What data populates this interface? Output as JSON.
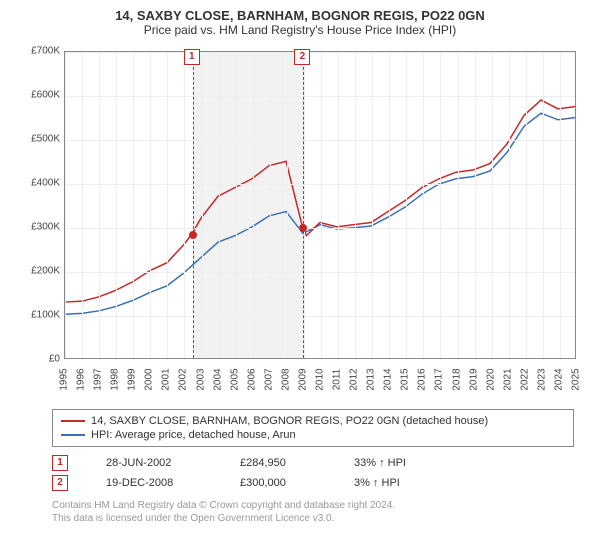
{
  "header": {
    "address": "14, SAXBY CLOSE, BARNHAM, BOGNOR REGIS, PO22 0GN",
    "subtitle": "Price paid vs. HM Land Registry's House Price Index (HPI)"
  },
  "chart": {
    "type": "line",
    "xlim": [
      1995,
      2025
    ],
    "ylim": [
      0,
      700000
    ],
    "ytick_step": 100000,
    "yticks": [
      "£0",
      "£100K",
      "£200K",
      "£300K",
      "£400K",
      "£500K",
      "£600K",
      "£700K"
    ],
    "xticks": [
      1995,
      1996,
      1997,
      1998,
      1999,
      2000,
      2001,
      2002,
      2003,
      2004,
      2005,
      2006,
      2007,
      2008,
      2009,
      2010,
      2011,
      2012,
      2013,
      2014,
      2015,
      2016,
      2017,
      2018,
      2019,
      2020,
      2021,
      2022,
      2023,
      2024,
      2025
    ],
    "background_color": "#ffffff",
    "grid_color": "#eeeeee",
    "band_color": "#f2f2f2",
    "band_range": [
      2002.5,
      2009.0
    ],
    "line_colors": {
      "property": "#c62828",
      "hpi": "#3b6fb6"
    },
    "line_width": 1.5,
    "markers": [
      {
        "n": "1",
        "x": 2002.49,
        "y": 284950
      },
      {
        "n": "2",
        "x": 2008.97,
        "y": 300000
      }
    ],
    "series_property": [
      [
        1995,
        128000
      ],
      [
        1996,
        130000
      ],
      [
        1997,
        140000
      ],
      [
        1998,
        155000
      ],
      [
        1999,
        175000
      ],
      [
        2000,
        200000
      ],
      [
        2001,
        218000
      ],
      [
        2002,
        260000
      ],
      [
        2002.49,
        284950
      ],
      [
        2003,
        320000
      ],
      [
        2004,
        370000
      ],
      [
        2005,
        390000
      ],
      [
        2006,
        410000
      ],
      [
        2007,
        440000
      ],
      [
        2008,
        450000
      ],
      [
        2008.97,
        300000
      ],
      [
        2009.2,
        280000
      ],
      [
        2010,
        310000
      ],
      [
        2011,
        300000
      ],
      [
        2012,
        305000
      ],
      [
        2013,
        310000
      ],
      [
        2014,
        335000
      ],
      [
        2015,
        360000
      ],
      [
        2016,
        390000
      ],
      [
        2017,
        410000
      ],
      [
        2018,
        425000
      ],
      [
        2019,
        430000
      ],
      [
        2020,
        445000
      ],
      [
        2021,
        490000
      ],
      [
        2022,
        555000
      ],
      [
        2023,
        590000
      ],
      [
        2024,
        570000
      ],
      [
        2025,
        575000
      ]
    ],
    "series_hpi": [
      [
        1995,
        100000
      ],
      [
        1996,
        102000
      ],
      [
        1997,
        108000
      ],
      [
        1998,
        118000
      ],
      [
        1999,
        132000
      ],
      [
        2000,
        150000
      ],
      [
        2001,
        165000
      ],
      [
        2002,
        195000
      ],
      [
        2003,
        230000
      ],
      [
        2004,
        265000
      ],
      [
        2005,
        280000
      ],
      [
        2006,
        300000
      ],
      [
        2007,
        325000
      ],
      [
        2008,
        335000
      ],
      [
        2009,
        285000
      ],
      [
        2010,
        305000
      ],
      [
        2011,
        295000
      ],
      [
        2012,
        298000
      ],
      [
        2013,
        302000
      ],
      [
        2014,
        322000
      ],
      [
        2015,
        345000
      ],
      [
        2016,
        375000
      ],
      [
        2017,
        398000
      ],
      [
        2018,
        410000
      ],
      [
        2019,
        415000
      ],
      [
        2020,
        428000
      ],
      [
        2021,
        470000
      ],
      [
        2022,
        530000
      ],
      [
        2023,
        560000
      ],
      [
        2024,
        545000
      ],
      [
        2025,
        550000
      ]
    ]
  },
  "legend": {
    "items": [
      {
        "color": "#c62828",
        "label": "14, SAXBY CLOSE, BARNHAM, BOGNOR REGIS, PO22 0GN (detached house)"
      },
      {
        "color": "#3b6fb6",
        "label": "HPI: Average price, detached house, Arun"
      }
    ]
  },
  "transactions": [
    {
      "n": "1",
      "date": "28-JUN-2002",
      "price": "£284,950",
      "delta": "33% ↑ HPI"
    },
    {
      "n": "2",
      "date": "19-DEC-2008",
      "price": "£300,000",
      "delta": "3% ↑ HPI"
    }
  ],
  "footer": {
    "line1": "Contains HM Land Registry data © Crown copyright and database right 2024.",
    "line2": "This data is licensed under the Open Government Licence v3.0."
  }
}
